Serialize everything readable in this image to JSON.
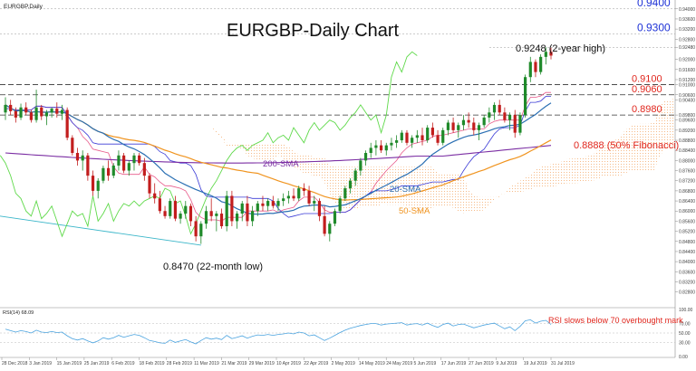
{
  "chart_data": {
    "type": "candlestick",
    "symbol_label": "EURGBP,Daily",
    "title": "EURGBP-Daily Chart",
    "y_range": [
      0.8225,
      0.9435
    ],
    "x_labels": [
      "28 Dec 2018",
      "3 Jan 2019",
      "15 Jan 2019",
      "25 Jan 2019",
      "6 Feb 2019",
      "18 Feb 2019",
      "28 Feb 2019",
      "11 Mar 2019",
      "21 Mar 2019",
      "29 Mar 2019",
      "10 Apr 2019",
      "22 Apr 2019",
      "2 May 2019",
      "14 May 2019",
      "24 May 2019",
      "5 Jun 2019",
      "17 Jun 2019",
      "27 Jun 2019",
      "9 Jul 2019",
      "19 Jul 2019",
      "31 Jul 2019"
    ],
    "y_ticks": [
      0.944,
      0.94,
      0.936,
      0.932,
      0.928,
      0.9248,
      0.92,
      0.916,
      0.912,
      0.91,
      0.906,
      0.904,
      0.898,
      0.896,
      0.892,
      0.888,
      0.884,
      0.88,
      0.876,
      0.872,
      0.868,
      0.864,
      0.86,
      0.856,
      0.852,
      0.848,
      0.844,
      0.84,
      0.836,
      0.832,
      0.828
    ],
    "horizontal_levels": [
      {
        "value": 0.94,
        "label": "0.9400",
        "color": "#1f33d6",
        "dashed": false
      },
      {
        "value": 0.93,
        "label": "0.9300",
        "color": "#1f33d6",
        "dashed": false
      },
      {
        "value": 0.91,
        "label": "0.9100",
        "color": "#e0261d",
        "dashed": true
      },
      {
        "value": 0.906,
        "label": "0.9060",
        "color": "#e0261d",
        "dashed": true
      },
      {
        "value": 0.898,
        "label": "0.8980",
        "color": "#e0261d",
        "dashed": true
      }
    ],
    "annotations": {
      "high": {
        "label": "0.9248 (2-year high)",
        "value": 0.9248
      },
      "low": {
        "label": "0.8470 (22-month low)",
        "value": 0.847
      },
      "fib": {
        "label": "0.8888 (50% Fibonacci)",
        "value": 0.8888
      },
      "sma200": "200-SMA",
      "sma20": "20-SMA",
      "sma50": "50-SMA",
      "rsi_note": "RSI slows below 70 overbought mark"
    },
    "candles": [
      [
        0.899,
        0.905,
        0.896,
        0.902
      ],
      [
        0.902,
        0.904,
        0.898,
        0.8995
      ],
      [
        0.8995,
        0.901,
        0.895,
        0.897
      ],
      [
        0.897,
        0.9025,
        0.896,
        0.901
      ],
      [
        0.901,
        0.903,
        0.898,
        0.899
      ],
      [
        0.899,
        0.9,
        0.895,
        0.896
      ],
      [
        0.896,
        0.908,
        0.895,
        0.901
      ],
      [
        0.901,
        0.902,
        0.896,
        0.8975
      ],
      [
        0.8975,
        0.9,
        0.894,
        0.899
      ],
      [
        0.899,
        0.901,
        0.897,
        0.9005
      ],
      [
        0.9005,
        0.903,
        0.897,
        0.8985
      ],
      [
        0.8985,
        0.902,
        0.896,
        0.9
      ],
      [
        0.9,
        0.901,
        0.888,
        0.889
      ],
      [
        0.889,
        0.89,
        0.882,
        0.883
      ],
      [
        0.883,
        0.885,
        0.878,
        0.88
      ],
      [
        0.88,
        0.884,
        0.876,
        0.882
      ],
      [
        0.882,
        0.883,
        0.872,
        0.874
      ],
      [
        0.874,
        0.876,
        0.866,
        0.868
      ],
      [
        0.868,
        0.873,
        0.865,
        0.872
      ],
      [
        0.872,
        0.878,
        0.871,
        0.877
      ],
      [
        0.877,
        0.88,
        0.872,
        0.874
      ],
      [
        0.874,
        0.879,
        0.873,
        0.878
      ],
      [
        0.878,
        0.884,
        0.876,
        0.882
      ],
      [
        0.882,
        0.883,
        0.875,
        0.876
      ],
      [
        0.876,
        0.88,
        0.874,
        0.879
      ],
      [
        0.879,
        0.883,
        0.876,
        0.882
      ],
      [
        0.882,
        0.883,
        0.878,
        0.879
      ],
      [
        0.879,
        0.881,
        0.872,
        0.874
      ],
      [
        0.874,
        0.875,
        0.865,
        0.867
      ],
      [
        0.867,
        0.871,
        0.863,
        0.865
      ],
      [
        0.865,
        0.868,
        0.859,
        0.86
      ],
      [
        0.86,
        0.862,
        0.857,
        0.858
      ],
      [
        0.858,
        0.865,
        0.857,
        0.864
      ],
      [
        0.864,
        0.866,
        0.856,
        0.857
      ],
      [
        0.857,
        0.86,
        0.855,
        0.859
      ],
      [
        0.859,
        0.864,
        0.857,
        0.862
      ],
      [
        0.862,
        0.863,
        0.854,
        0.856
      ],
      [
        0.856,
        0.858,
        0.848,
        0.85
      ],
      [
        0.85,
        0.856,
        0.847,
        0.855
      ],
      [
        0.855,
        0.862,
        0.853,
        0.86
      ],
      [
        0.86,
        0.865,
        0.856,
        0.858
      ],
      [
        0.858,
        0.86,
        0.852,
        0.859
      ],
      [
        0.859,
        0.861,
        0.853,
        0.854
      ],
      [
        0.854,
        0.868,
        0.852,
        0.866
      ],
      [
        0.866,
        0.868,
        0.854,
        0.856
      ],
      [
        0.856,
        0.86,
        0.853,
        0.859
      ],
      [
        0.859,
        0.864,
        0.856,
        0.863
      ],
      [
        0.863,
        0.866,
        0.854,
        0.856
      ],
      [
        0.856,
        0.862,
        0.854,
        0.86
      ],
      [
        0.86,
        0.864,
        0.858,
        0.863
      ],
      [
        0.863,
        0.866,
        0.86,
        0.862
      ],
      [
        0.862,
        0.865,
        0.86,
        0.864
      ],
      [
        0.864,
        0.866,
        0.861,
        0.862
      ],
      [
        0.862,
        0.865,
        0.86,
        0.864
      ],
      [
        0.864,
        0.867,
        0.862,
        0.865
      ],
      [
        0.865,
        0.868,
        0.863,
        0.866
      ],
      [
        0.866,
        0.869,
        0.864,
        0.865
      ],
      [
        0.865,
        0.87,
        0.864,
        0.869
      ],
      [
        0.869,
        0.871,
        0.866,
        0.868
      ],
      [
        0.868,
        0.87,
        0.862,
        0.863
      ],
      [
        0.863,
        0.866,
        0.86,
        0.864
      ],
      [
        0.864,
        0.865,
        0.856,
        0.858
      ],
      [
        0.858,
        0.862,
        0.85,
        0.851
      ],
      [
        0.851,
        0.856,
        0.848,
        0.855
      ],
      [
        0.855,
        0.861,
        0.854,
        0.86
      ],
      [
        0.86,
        0.866,
        0.859,
        0.865
      ],
      [
        0.865,
        0.87,
        0.864,
        0.869
      ],
      [
        0.869,
        0.873,
        0.867,
        0.872
      ],
      [
        0.872,
        0.877,
        0.87,
        0.876
      ],
      [
        0.876,
        0.881,
        0.874,
        0.88
      ],
      [
        0.88,
        0.884,
        0.878,
        0.883
      ],
      [
        0.883,
        0.887,
        0.881,
        0.885
      ],
      [
        0.885,
        0.888,
        0.882,
        0.886
      ],
      [
        0.886,
        0.888,
        0.883,
        0.884
      ],
      [
        0.884,
        0.887,
        0.882,
        0.886
      ],
      [
        0.886,
        0.889,
        0.884,
        0.887
      ],
      [
        0.887,
        0.89,
        0.885,
        0.888
      ],
      [
        0.888,
        0.892,
        0.887,
        0.891
      ],
      [
        0.891,
        0.892,
        0.886,
        0.887
      ],
      [
        0.887,
        0.89,
        0.885,
        0.889
      ],
      [
        0.889,
        0.892,
        0.887,
        0.89
      ],
      [
        0.89,
        0.893,
        0.886,
        0.888
      ],
      [
        0.888,
        0.894,
        0.887,
        0.893
      ],
      [
        0.893,
        0.895,
        0.889,
        0.89
      ],
      [
        0.89,
        0.892,
        0.886,
        0.887
      ],
      [
        0.887,
        0.893,
        0.886,
        0.892
      ],
      [
        0.892,
        0.896,
        0.89,
        0.895
      ],
      [
        0.895,
        0.897,
        0.891,
        0.892
      ],
      [
        0.892,
        0.895,
        0.889,
        0.894
      ],
      [
        0.894,
        0.898,
        0.892,
        0.896
      ],
      [
        0.896,
        0.899,
        0.893,
        0.895
      ],
      [
        0.895,
        0.897,
        0.89,
        0.892
      ],
      [
        0.892,
        0.895,
        0.888,
        0.894
      ],
      [
        0.894,
        0.898,
        0.893,
        0.897
      ],
      [
        0.897,
        0.901,
        0.895,
        0.899
      ],
      [
        0.899,
        0.903,
        0.896,
        0.902
      ],
      [
        0.902,
        0.904,
        0.898,
        0.899
      ],
      [
        0.899,
        0.901,
        0.895,
        0.896
      ],
      [
        0.896,
        0.899,
        0.892,
        0.898
      ],
      [
        0.898,
        0.9,
        0.889,
        0.891
      ],
      [
        0.891,
        0.899,
        0.89,
        0.898
      ],
      [
        0.898,
        0.914,
        0.897,
        0.913
      ],
      [
        0.913,
        0.921,
        0.911,
        0.919
      ],
      [
        0.919,
        0.92,
        0.913,
        0.915
      ],
      [
        0.915,
        0.922,
        0.914,
        0.921
      ],
      [
        0.921,
        0.9248,
        0.918,
        0.923
      ],
      [
        0.923,
        0.9246,
        0.92,
        0.9215
      ]
    ],
    "rsi": {
      "label": "RSI(14) 68.09",
      "levels": [
        70,
        50,
        30
      ],
      "tick_labels": [
        "100.00",
        "70.00",
        "50.00",
        "30.00",
        "0.00"
      ],
      "values": [
        58,
        55,
        52,
        55,
        53,
        50,
        56,
        52,
        51,
        53,
        51,
        52,
        44,
        38,
        35,
        38,
        33,
        29,
        33,
        40,
        37,
        40,
        45,
        41,
        44,
        47,
        45,
        40,
        34,
        32,
        29,
        28,
        35,
        30,
        33,
        36,
        31,
        27,
        34,
        40,
        37,
        39,
        36,
        45,
        38,
        41,
        44,
        39,
        43,
        46,
        45,
        47,
        45,
        47,
        48,
        50,
        48,
        52,
        50,
        44,
        46,
        40,
        34,
        39,
        45,
        51,
        56,
        60,
        63,
        66,
        68,
        70,
        70,
        67,
        69,
        70,
        71,
        72,
        67,
        69,
        70,
        67,
        71,
        66,
        62,
        68,
        71,
        65,
        68,
        69,
        65,
        61,
        64,
        67,
        69,
        71,
        65,
        59,
        63,
        55,
        64,
        76,
        78,
        71,
        75,
        77,
        68
      ]
    }
  }
}
